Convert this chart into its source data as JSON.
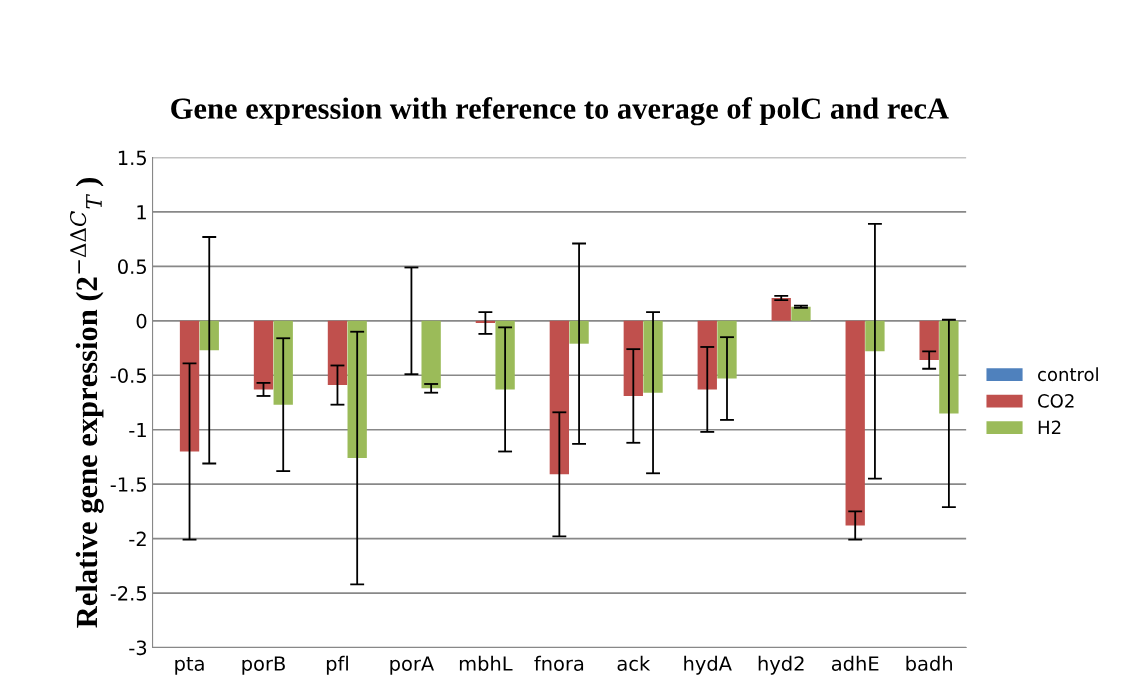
{
  "chart_data": {
    "type": "bar",
    "title": "Gene expression with reference to average of polC and recA",
    "ylabel": "Relative gene expression (2$^{−ΔΔC}$$_{T}$ )",
    "categories": [
      "pta",
      "porB",
      "pfl",
      "porA",
      "mbhL",
      "fnora",
      "ack",
      "hydA",
      "hyd2",
      "adhE",
      "badh"
    ],
    "series": [
      {
        "name": "control",
        "color": "#4f81bd",
        "values": [
          0,
          0,
          0,
          0,
          0,
          0,
          0,
          0,
          0,
          0,
          0
        ]
      },
      {
        "name": "CO2",
        "color": "#c0504d",
        "values": [
          -1.2,
          -0.63,
          -0.59,
          0,
          -0.02,
          -1.41,
          -0.69,
          -0.63,
          0.21,
          -1.88,
          -0.36
        ],
        "errors": [
          0.81,
          0.06,
          0.18,
          0.49,
          0.1,
          0.57,
          0.43,
          0.39,
          0.02,
          0.13,
          0.08
        ]
      },
      {
        "name": "H2",
        "color": "#9bbb59",
        "values": [
          -0.27,
          -0.77,
          -1.26,
          -0.62,
          -0.63,
          -0.21,
          -0.66,
          -0.53,
          0.13,
          -0.28,
          -0.85
        ],
        "errors": [
          1.04,
          0.61,
          1.16,
          0.04,
          0.57,
          0.92,
          0.74,
          0.38,
          0.01,
          1.17,
          0.86
        ]
      }
    ],
    "ylim": [
      -3,
      1.5
    ],
    "yticks": [
      -3,
      -2.5,
      -2,
      -1.5,
      -1,
      -0.5,
      0,
      0.5,
      1,
      1.5
    ],
    "grid": "y",
    "legend": "right"
  }
}
